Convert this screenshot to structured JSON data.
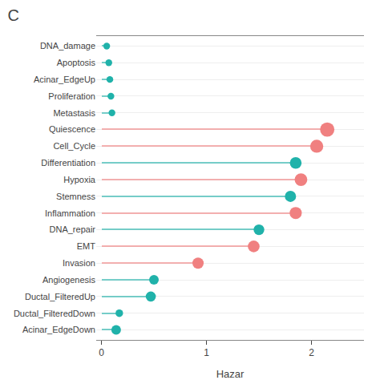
{
  "chart_data": {
    "type": "lollipop",
    "title": "C",
    "xlabel": "Hazar",
    "orientation": "horizontal",
    "categories": [
      "DNA_damage",
      "Apoptosis",
      "Acinar_EdgeUp",
      "Proliferation",
      "Metastasis",
      "Quiescence",
      "Cell_Cycle",
      "Differentiation",
      "Hypoxia",
      "Stemness",
      "Inflammation",
      "DNA_repair",
      "EMT",
      "Invasion",
      "Angiogenesis",
      "Ductal_FilteredUp",
      "Ductal_FilteredDown",
      "Acinar_EdgeDown"
    ],
    "values": [
      0.05,
      0.07,
      0.08,
      0.09,
      0.1,
      2.15,
      2.05,
      1.85,
      1.9,
      1.8,
      1.85,
      1.5,
      1.45,
      0.92,
      0.5,
      0.47,
      0.17,
      0.14
    ],
    "colors": [
      "#20B2AA",
      "#20B2AA",
      "#20B2AA",
      "#20B2AA",
      "#20B2AA",
      "#F08080",
      "#F08080",
      "#20B2AA",
      "#F08080",
      "#20B2AA",
      "#F08080",
      "#20B2AA",
      "#F08080",
      "#F08080",
      "#20B2AA",
      "#20B2AA",
      "#20B2AA",
      "#20B2AA"
    ],
    "sizes": [
      40,
      40,
      40,
      40,
      40,
      180,
      150,
      120,
      140,
      110,
      130,
      100,
      120,
      110,
      80,
      90,
      50,
      80
    ],
    "xlim": [
      -0.05,
      2.5
    ],
    "xticks": [
      0,
      1,
      2
    ],
    "grid": "y"
  }
}
